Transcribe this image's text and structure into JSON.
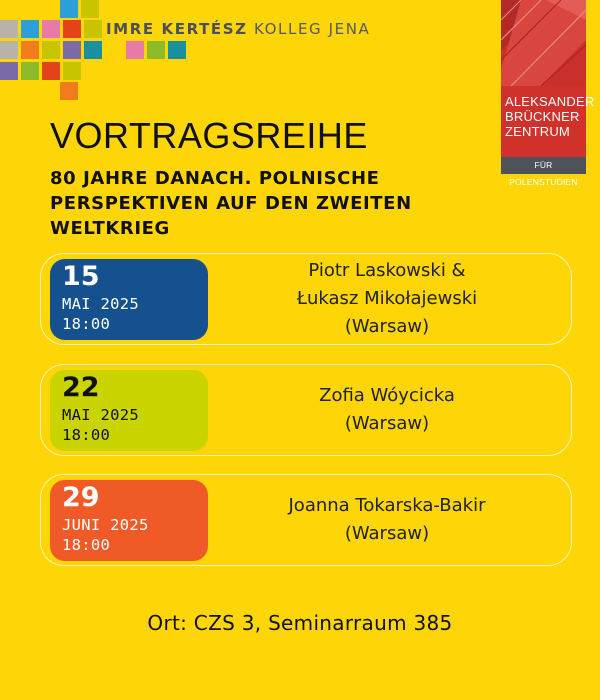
{
  "header": {
    "kolleg_bold": "IMRE KERTÉSZ",
    "kolleg_rest": "KOLLEG JENA",
    "partner_logo": {
      "lines": [
        "ALEKSANDER",
        "BRÜCKNER",
        "ZENTRUM"
      ],
      "subline": "FÜR POLENSTUDIEN",
      "colors": {
        "red": "#c9302c",
        "grey": "#4e525b"
      }
    },
    "mosaic_colors": [
      "#2a9fd8",
      "#c8c400",
      "#7a6aa8",
      "#f07c1e",
      "#e77aa6",
      "#8dbb2a",
      "#3c7fb8",
      "#e4421b",
      "#b8b2aa",
      "#1a8fa0"
    ]
  },
  "main": {
    "title": "VORTRAGSREIHE",
    "subtitle": "80 JAHRE DANACH. POLNISCHE PERSPEKTIVEN AUF DEN ZWEITEN WELTKRIEG",
    "events": [
      {
        "day": "15",
        "month": "MAI 2025",
        "time": "18:00",
        "speaker_lines": [
          "Piotr Laskowski &",
          "Łukasz Mikołajewski",
          "(Warsaw)"
        ],
        "box_color": "#15508f",
        "text_color": "#ffffff"
      },
      {
        "day": "22",
        "month": "MAI 2025",
        "time": "18:00",
        "speaker_lines": [
          "Zofia Wóycicka",
          "(Warsaw)"
        ],
        "box_color": "#c9d400",
        "text_color": "#111111"
      },
      {
        "day": "29",
        "month": "JUNI 2025",
        "time": "18:00",
        "speaker_lines": [
          "Joanna Tokarska-Bakir",
          "(Warsaw)"
        ],
        "box_color": "#ef5a26",
        "text_color": "#ffffff"
      }
    ]
  },
  "footer": {
    "location": "Ort: CZS 3, Seminarraum 385"
  },
  "colors": {
    "background": "#fed506",
    "card_border": "#fff3b3"
  }
}
